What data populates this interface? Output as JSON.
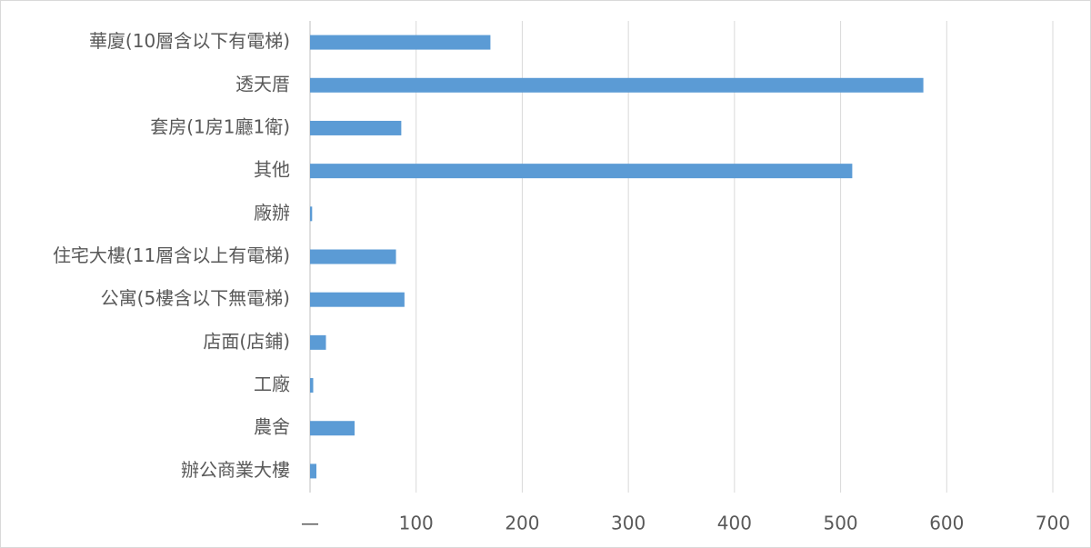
{
  "chart_data": {
    "type": "hbar",
    "categories": [
      "華廈(10層含以下有電梯)",
      "透天厝",
      "套房(1房1廳1衛)",
      "其他",
      "廠辦",
      "住宅大樓(11層含以上有電梯)",
      "公寓(5樓含以下無電梯)",
      "店面(店鋪)",
      "工廠",
      "農舍",
      "辦公商業大樓"
    ],
    "values": [
      170,
      578,
      86,
      511,
      2,
      81,
      89,
      15,
      3,
      42,
      6
    ],
    "color": "#5b9bd5",
    "xlim": [
      0,
      700
    ],
    "xticks": [
      {
        "value": 0,
        "label": "—"
      },
      100,
      200,
      300,
      400,
      500,
      600,
      700
    ],
    "grid": true
  }
}
